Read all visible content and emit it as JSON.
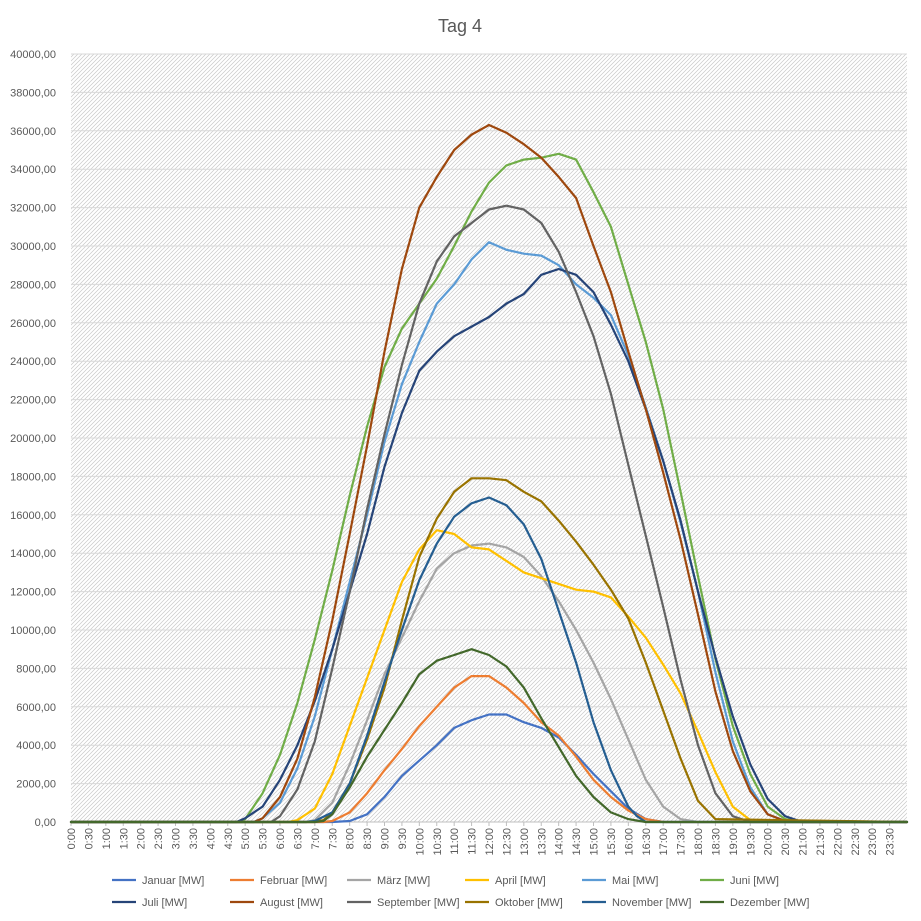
{
  "chart_data": {
    "type": "line",
    "title": "Tag 4",
    "xlabel": "",
    "ylabel": "",
    "ylim": [
      0,
      40000
    ],
    "y_ticks": [
      0,
      2000,
      4000,
      6000,
      8000,
      10000,
      12000,
      14000,
      16000,
      18000,
      20000,
      22000,
      24000,
      26000,
      28000,
      30000,
      32000,
      34000,
      36000,
      38000,
      40000
    ],
    "y_tick_labels": [
      "0,00",
      "2000,00",
      "4000,00",
      "6000,00",
      "8000,00",
      "10000,00",
      "12000,00",
      "14000,00",
      "16000,00",
      "18000,00",
      "20000,00",
      "22000,00",
      "24000,00",
      "26000,00",
      "28000,00",
      "30000,00",
      "32000,00",
      "34000,00",
      "36000,00",
      "38000,00",
      "40000,00"
    ],
    "x_tick_labels": [
      "0:00",
      "0:30",
      "1:00",
      "1:30",
      "2:00",
      "2:30",
      "3:00",
      "3:30",
      "4:00",
      "4:30",
      "5:00",
      "5:30",
      "6:00",
      "6:30",
      "7:00",
      "7:30",
      "8:00",
      "8:30",
      "9:00",
      "9:30",
      "10:00",
      "10:30",
      "11:00",
      "11:30",
      "12:00",
      "12:30",
      "13:00",
      "13:30",
      "14:00",
      "14:30",
      "15:00",
      "15:30",
      "16:00",
      "16:30",
      "17:00",
      "17:30",
      "18:00",
      "18:30",
      "19:00",
      "19:30",
      "20:00",
      "20:30",
      "21:00",
      "21:30",
      "22:00",
      "22:30",
      "23:00",
      "23:30"
    ],
    "x_range_hours": [
      0,
      24
    ],
    "grid": true,
    "legend_position": "bottom",
    "series": [
      {
        "name": "Januar [MW]",
        "color": "#4472c4",
        "x": [
          0,
          7.5,
          8,
          8.5,
          9,
          9.5,
          10,
          10.5,
          11,
          11.5,
          12,
          12.5,
          13,
          13.5,
          14,
          14.5,
          15,
          15.5,
          16,
          16.5,
          17,
          24
        ],
        "values": [
          0,
          0,
          50,
          400,
          1300,
          2400,
          3200,
          4000,
          4900,
          5300,
          5600,
          5600,
          5200,
          4900,
          4400,
          3500,
          2500,
          1600,
          700,
          150,
          0,
          0
        ]
      },
      {
        "name": "Februar [MW]",
        "color": "#ed7d31",
        "x": [
          0,
          7.25,
          7.5,
          8,
          8.5,
          9,
          9.5,
          10,
          10.5,
          11,
          11.5,
          12,
          12.5,
          13,
          13.5,
          14,
          14.5,
          15,
          15.5,
          16,
          16.5,
          17,
          24
        ],
        "values": [
          0,
          0,
          50,
          500,
          1500,
          2700,
          3800,
          5000,
          6000,
          7000,
          7600,
          7600,
          7000,
          6200,
          5200,
          4500,
          3400,
          2200,
          1300,
          600,
          150,
          0,
          0
        ]
      },
      {
        "name": "März [MW]",
        "color": "#a5a5a5",
        "x": [
          0,
          6.75,
          7,
          7.5,
          8,
          8.5,
          9,
          9.5,
          10,
          10.5,
          11,
          11.5,
          12,
          12.5,
          13,
          13.5,
          14,
          14.5,
          15,
          15.5,
          16,
          16.5,
          17,
          17.5,
          18,
          24
        ],
        "values": [
          0,
          0,
          100,
          1000,
          3000,
          5300,
          7700,
          9600,
          11500,
          13200,
          14000,
          14400,
          14500,
          14300,
          13800,
          12800,
          11500,
          10000,
          8300,
          6400,
          4300,
          2200,
          800,
          150,
          0,
          0
        ]
      },
      {
        "name": "April [MW]",
        "color": "#ffc000",
        "x": [
          0,
          6.25,
          6.5,
          7,
          7.5,
          8,
          8.5,
          9,
          9.5,
          10,
          10.5,
          11,
          11.5,
          12,
          12.5,
          13,
          13.5,
          14,
          14.5,
          15,
          15.5,
          16,
          16.5,
          17,
          17.5,
          18,
          18.5,
          19,
          19.5,
          24
        ],
        "values": [
          0,
          0,
          100,
          700,
          2500,
          5000,
          7500,
          10000,
          12500,
          14200,
          15200,
          15000,
          14300,
          14200,
          13600,
          13000,
          12700,
          12400,
          12100,
          12000,
          11700,
          10700,
          9600,
          8200,
          6700,
          4700,
          2600,
          800,
          100,
          0
        ]
      },
      {
        "name": "Mai [MW]",
        "color": "#5b9bd5",
        "x": [
          0,
          5.25,
          5.5,
          6,
          6.5,
          7,
          7.5,
          8,
          8.5,
          9,
          9.5,
          10,
          10.5,
          11,
          11.5,
          12,
          12.5,
          13,
          13.5,
          14,
          14.5,
          15,
          15.5,
          16,
          16.5,
          17,
          17.5,
          18,
          18.5,
          19,
          19.5,
          20,
          20.5,
          24
        ],
        "values": [
          0,
          0,
          200,
          1000,
          2800,
          5500,
          9000,
          12500,
          16000,
          19800,
          22800,
          25000,
          27000,
          28000,
          29300,
          30200,
          29800,
          29600,
          29500,
          29000,
          28000,
          27300,
          26400,
          24300,
          21600,
          18800,
          15600,
          12000,
          7800,
          4200,
          1800,
          400,
          50,
          0
        ]
      },
      {
        "name": "Juni [MW]",
        "color": "#70ad47",
        "x": [
          0,
          4.75,
          5,
          5.5,
          6,
          6.5,
          7,
          7.5,
          8,
          8.5,
          9,
          9.5,
          10,
          10.5,
          11,
          11.5,
          12,
          12.5,
          13,
          13.5,
          14,
          14.5,
          15,
          15.5,
          16,
          16.5,
          17,
          17.5,
          18,
          18.5,
          19,
          19.5,
          20,
          20.5,
          21,
          24
        ],
        "values": [
          0,
          0,
          150,
          1500,
          3500,
          6200,
          9500,
          13100,
          17000,
          20600,
          23700,
          25700,
          27000,
          28300,
          30000,
          31800,
          33300,
          34200,
          34500,
          34600,
          34800,
          34500,
          32800,
          31000,
          28000,
          25000,
          21500,
          17200,
          12800,
          8500,
          5000,
          2500,
          800,
          150,
          0,
          0
        ]
      },
      {
        "name": "Juli [MW]",
        "color": "#264478",
        "x": [
          0,
          4.75,
          5,
          5.5,
          6,
          6.5,
          7,
          7.5,
          8,
          8.5,
          9,
          9.5,
          10,
          10.5,
          11,
          11.5,
          12,
          12.5,
          13,
          13.5,
          14,
          14.5,
          15,
          15.5,
          16,
          16.5,
          17,
          17.5,
          18,
          18.5,
          19,
          19.5,
          20,
          20.5,
          21,
          24
        ],
        "values": [
          0,
          0,
          200,
          800,
          2200,
          4000,
          6300,
          9000,
          12000,
          15000,
          18500,
          21300,
          23500,
          24500,
          25300,
          25800,
          26300,
          27000,
          27500,
          28500,
          28800,
          28500,
          27600,
          25900,
          24000,
          21500,
          18800,
          15700,
          12000,
          8600,
          5500,
          3000,
          1200,
          300,
          0,
          0
        ]
      },
      {
        "name": "August [MW]",
        "color": "#9e480e",
        "x": [
          0,
          5.25,
          5.5,
          6,
          6.5,
          7,
          7.5,
          8,
          8.5,
          9,
          9.5,
          10,
          10.5,
          11,
          11.5,
          12,
          12.5,
          13,
          13.5,
          14,
          14.5,
          15,
          15.5,
          16,
          16.5,
          17,
          17.5,
          18,
          18.5,
          19,
          19.5,
          20,
          20.5,
          21,
          24
        ],
        "values": [
          0,
          0,
          200,
          1300,
          3300,
          6500,
          10500,
          15000,
          19600,
          24500,
          28800,
          32000,
          33600,
          35000,
          35800,
          36300,
          35900,
          35300,
          34600,
          33600,
          32500,
          30000,
          27600,
          24500,
          21500,
          18200,
          14700,
          10800,
          6800,
          3700,
          1600,
          400,
          50,
          0,
          0
        ]
      },
      {
        "name": "September [MW]",
        "color": "#636363",
        "x": [
          0,
          5.75,
          6,
          6.5,
          7,
          7.5,
          8,
          8.5,
          9,
          9.5,
          10,
          10.5,
          11,
          11.5,
          12,
          12.5,
          13,
          13.5,
          14,
          14.5,
          15,
          15.5,
          16,
          16.5,
          17,
          17.5,
          18,
          18.5,
          19,
          19.5,
          20,
          24
        ],
        "values": [
          0,
          0,
          300,
          1700,
          4200,
          8000,
          12000,
          16300,
          20200,
          23800,
          27000,
          29200,
          30500,
          31200,
          31900,
          32100,
          31900,
          31200,
          29700,
          27600,
          25300,
          22300,
          18600,
          14900,
          11200,
          7400,
          4000,
          1500,
          300,
          0,
          0,
          0
        ]
      },
      {
        "name": "Oktober [MW]",
        "color": "#997300",
        "x": [
          0,
          7,
          7.25,
          7.5,
          8,
          8.5,
          9,
          9.5,
          10,
          10.5,
          11,
          11.5,
          12,
          12.5,
          13,
          13.5,
          14,
          14.5,
          15,
          15.5,
          16,
          16.5,
          17,
          17.5,
          18,
          18.5,
          24
        ],
        "values": [
          0,
          0,
          100,
          500,
          2000,
          4300,
          7000,
          10500,
          13800,
          15800,
          17200,
          17900,
          17900,
          17800,
          17200,
          16700,
          15700,
          14600,
          13400,
          12100,
          10600,
          8300,
          5800,
          3300,
          1100,
          150,
          0
        ]
      },
      {
        "name": "November [MW]",
        "color": "#255e91",
        "x": [
          0,
          6.75,
          7,
          7.5,
          8,
          8.5,
          9,
          9.5,
          10,
          10.5,
          11,
          11.5,
          12,
          12.5,
          13,
          13.5,
          14,
          14.5,
          15,
          15.5,
          16,
          16.25,
          16.5,
          24
        ],
        "values": [
          0,
          0,
          50,
          500,
          2000,
          4500,
          7300,
          10000,
          12600,
          14500,
          15900,
          16600,
          16900,
          16500,
          15500,
          13700,
          11000,
          8300,
          5200,
          2700,
          800,
          300,
          0,
          0
        ]
      },
      {
        "name": "Dezember [MW]",
        "color": "#43682b",
        "x": [
          0,
          7,
          7.25,
          7.5,
          8,
          8.5,
          9,
          9.5,
          10,
          10.5,
          11,
          11.5,
          12,
          12.5,
          13,
          13.5,
          14,
          14.5,
          15,
          15.5,
          16,
          16.5,
          24
        ],
        "values": [
          0,
          0,
          50,
          400,
          1800,
          3400,
          4800,
          6200,
          7700,
          8400,
          8700,
          9000,
          8700,
          8100,
          7000,
          5400,
          3900,
          2400,
          1300,
          500,
          150,
          0,
          0
        ]
      }
    ]
  }
}
